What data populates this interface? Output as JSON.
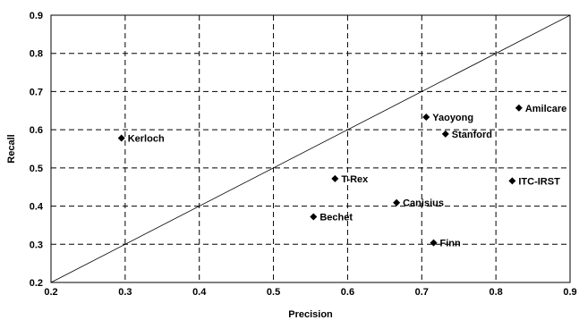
{
  "chart_data": {
    "type": "scatter",
    "title": "",
    "xlabel": "Precision",
    "ylabel": "Recall",
    "xlim": [
      0.2,
      0.9
    ],
    "ylim": [
      0.2,
      0.9
    ],
    "x_ticks": [
      "0.2",
      "0.3",
      "0.4",
      "0.5",
      "0.6",
      "0.7",
      "0.8",
      "0.9"
    ],
    "y_ticks": [
      "0.2",
      "0.3",
      "0.4",
      "0.5",
      "0.6",
      "0.7",
      "0.8",
      "0.9"
    ],
    "grid": true,
    "grid_style": "dashed",
    "reference_line": {
      "from": [
        0.2,
        0.2
      ],
      "to": [
        0.9,
        0.9
      ]
    },
    "marker": "diamond",
    "marker_color": "#000000",
    "points": [
      {
        "label": "Kerloch",
        "x": 0.295,
        "y": 0.578
      },
      {
        "label": "T-Rex",
        "x": 0.583,
        "y": 0.472
      },
      {
        "label": "Bechet",
        "x": 0.554,
        "y": 0.372
      },
      {
        "label": "Canisius",
        "x": 0.666,
        "y": 0.409
      },
      {
        "label": "Yaoyong",
        "x": 0.706,
        "y": 0.633
      },
      {
        "label": "Stanford",
        "x": 0.732,
        "y": 0.589
      },
      {
        "label": "Finn",
        "x": 0.716,
        "y": 0.304
      },
      {
        "label": "Amilcare",
        "x": 0.831,
        "y": 0.657
      },
      {
        "label": "ITC-IRST",
        "x": 0.822,
        "y": 0.466
      }
    ]
  }
}
